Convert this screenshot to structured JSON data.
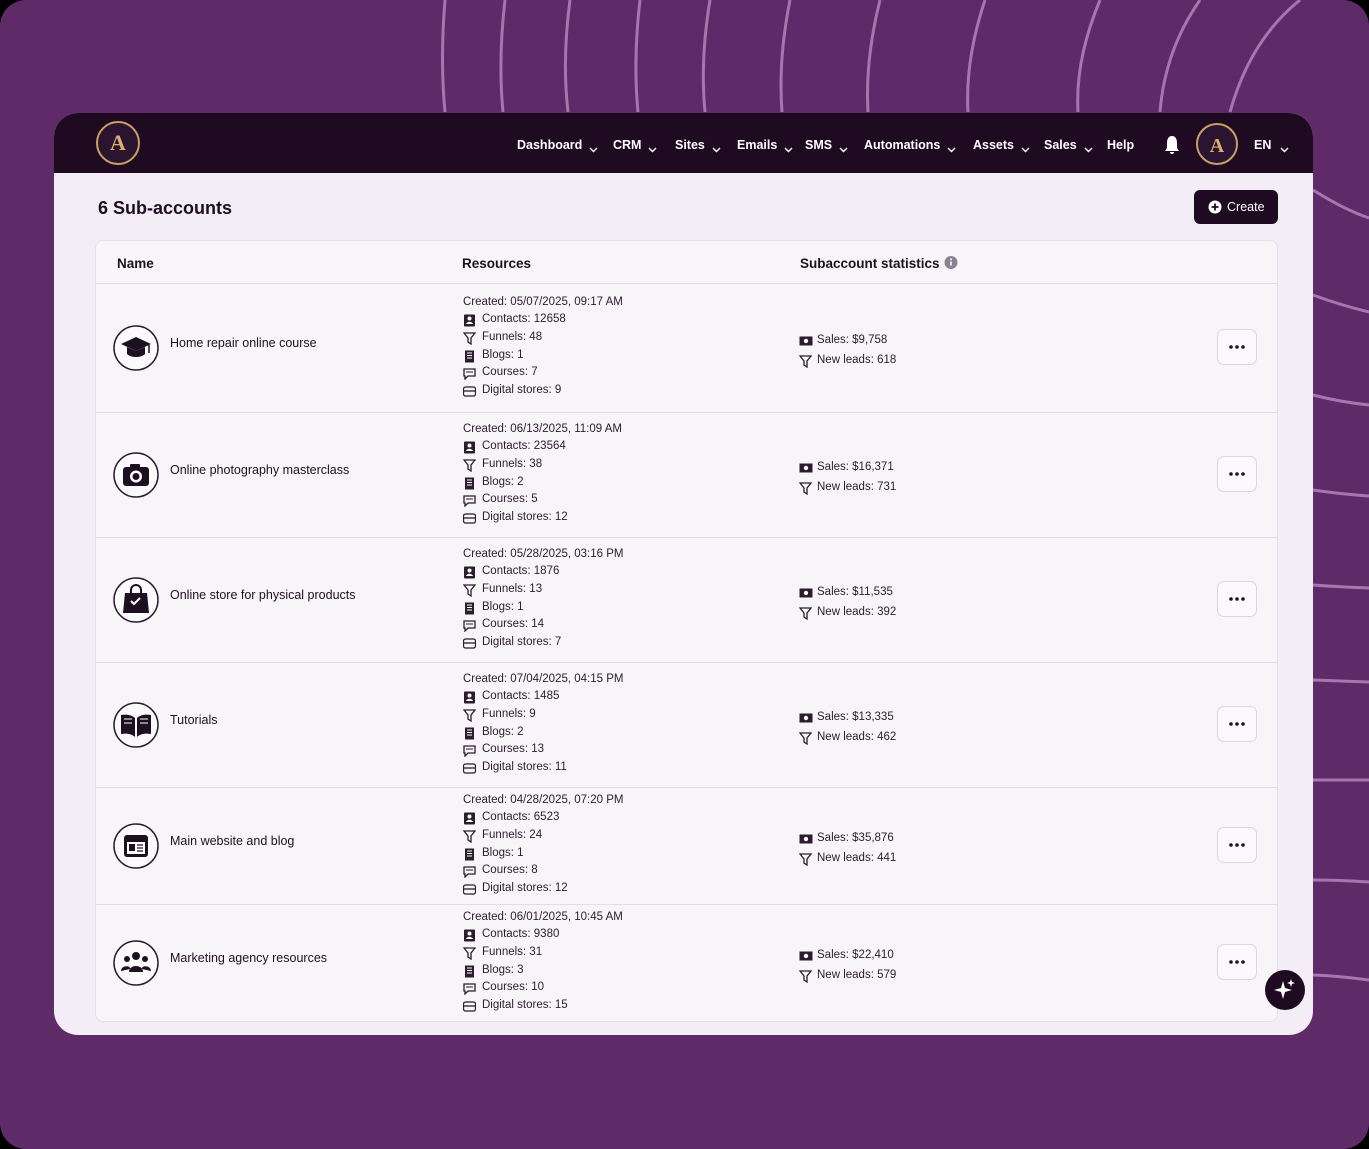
{
  "header": {
    "nav": [
      "Dashboard",
      "CRM",
      "Sites",
      "Emails",
      "SMS",
      "Automations",
      "Assets",
      "Sales",
      "Help"
    ],
    "language": "EN"
  },
  "page": {
    "title": "6 Sub-accounts",
    "create_button": "Create"
  },
  "table": {
    "columns": [
      "Name",
      "Resources",
      "Subaccount statistics"
    ],
    "rows": [
      {
        "name": "Home repair online course",
        "resources": [
          "Created: 05/07/2025, 09:17 AM",
          "Contacts: 12658",
          "Funnels: 48",
          "Blogs: 1",
          "Courses: 7",
          "Digital stores: 9"
        ],
        "statistics": [
          "Sales: $9,758",
          "New leads: 618"
        ]
      },
      {
        "name": "Online photography masterclass",
        "resources": [
          "Created: 06/13/2025, 11:09 AM",
          "Contacts: 23564",
          "Funnels: 38",
          "Blogs: 2",
          "Courses: 5",
          "Digital stores: 12"
        ],
        "statistics": [
          "Sales: $16,371",
          "New leads: 731"
        ]
      },
      {
        "name": "Online store for physical products",
        "resources": [
          "Created: 05/28/2025, 03:16 PM",
          "Contacts:  1876",
          "Funnels: 13",
          "Blogs: 1",
          "Courses: 14",
          "Digital stores: 7"
        ],
        "statistics": [
          "Sales: $11,535",
          "New leads: 392"
        ]
      },
      {
        "name": "Tutorials",
        "resources": [
          "Created: 07/04/2025, 04:15 PM",
          "Contacts:  1485",
          "Funnels: 9",
          "Blogs: 2",
          "Courses: 13",
          "Digital stores: 11"
        ],
        "statistics": [
          "Sales: $13,335",
          "New leads: 462"
        ]
      },
      {
        "name": "Main website and blog",
        "resources": [
          "Created: 04/28/2025, 07:20 PM",
          "Contacts:  6523",
          "Funnels: 24",
          "Blogs: 1",
          "Courses: 8",
          "Digital stores: 12"
        ],
        "statistics": [
          "Sales: $35,876",
          "New leads: 441"
        ]
      },
      {
        "name": "Marketing agency resources",
        "resources": [
          "Created: 06/01/2025, 10:45 AM",
          "Contacts:  9380",
          "Funnels: 31",
          "Blogs: 3",
          "Courses: 10",
          "Digital stores: 15"
        ],
        "statistics": [
          "Sales: $22,410",
          "New leads: 579"
        ]
      }
    ]
  }
}
